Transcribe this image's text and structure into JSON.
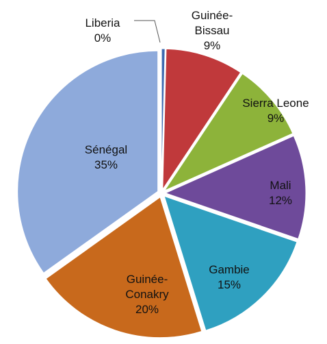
{
  "chart_data": {
    "type": "pie",
    "categories": [
      "Liberia",
      "Guinée-Bissau",
      "Sierra Leone",
      "Mali",
      "Gambie",
      "Guinée-Conakry",
      "Sénégal"
    ],
    "values": [
      0.4,
      9,
      9,
      12,
      15,
      20,
      35
    ],
    "value_labels": [
      "0%",
      "9%",
      "9%",
      "12%",
      "15%",
      "20%",
      "35%"
    ],
    "colors": [
      "#3d6ab0",
      "#c0393b",
      "#8db33a",
      "#6e4a9a",
      "#2fa0c0",
      "#c8691c",
      "#8eaadb"
    ]
  }
}
